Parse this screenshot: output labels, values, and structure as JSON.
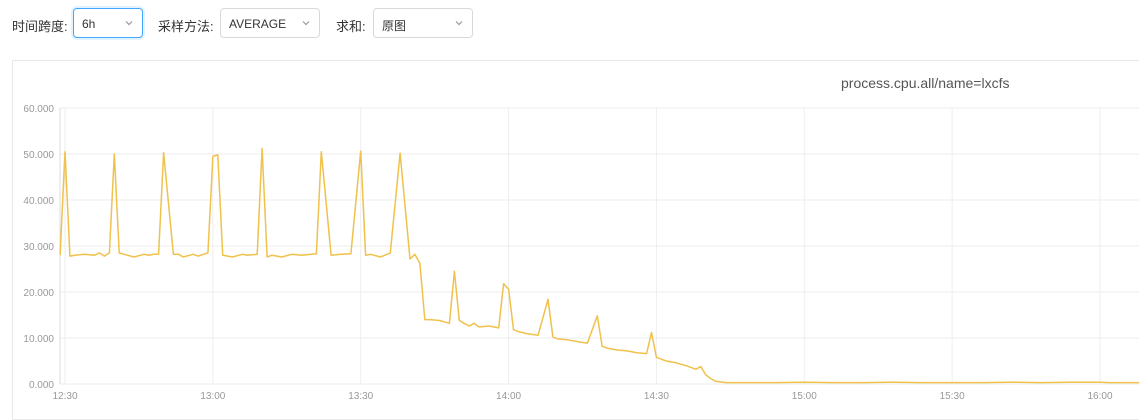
{
  "toolbar": {
    "time_span": {
      "label": "时间跨度:",
      "value": "6h"
    },
    "sampling": {
      "label": "采样方法:",
      "value": "AVERAGE"
    },
    "sum": {
      "label": "求和:",
      "value": "原图"
    }
  },
  "chart_data": {
    "type": "line",
    "title": "process.cpu.all/name=lxcfs",
    "xlabel": "",
    "ylabel": "",
    "ylim": [
      0,
      60
    ],
    "y_ticks": [
      "0.000",
      "10.000",
      "20.000",
      "30.000",
      "40.000",
      "50.000",
      "60.000"
    ],
    "x_ticks": [
      "12:30",
      "13:00",
      "13:30",
      "14:00",
      "14:30",
      "15:00",
      "15:30",
      "16:00"
    ],
    "x_range": [
      "12:29",
      "16:08"
    ],
    "grid": true,
    "line_color": "#f0c14b",
    "series": [
      {
        "x": [
          "12:29",
          "12:30",
          "12:31",
          "12:32",
          "12:34",
          "12:36",
          "12:37",
          "12:38",
          "12:39",
          "12:40",
          "12:41",
          "12:42",
          "12:44",
          "12:46",
          "12:47",
          "12:48",
          "12:49",
          "12:50",
          "12:52",
          "12:53",
          "12:54",
          "12:56",
          "12:57",
          "12:59",
          "13:00",
          "13:01",
          "13:02",
          "13:04",
          "13:06",
          "13:07",
          "13:09",
          "13:10",
          "13:11",
          "13:12",
          "13:14",
          "13:16",
          "13:18",
          "13:20",
          "13:21",
          "13:22",
          "13:24",
          "13:26",
          "13:28",
          "13:30",
          "13:31",
          "13:32",
          "13:34",
          "13:36",
          "13:38",
          "13:40",
          "13:41",
          "13:42",
          "13:43",
          "13:44",
          "13:46",
          "13:48",
          "13:49",
          "13:50",
          "13:51",
          "13:52",
          "13:53",
          "13:54",
          "13:56",
          "13:58",
          "13:59",
          "14:00",
          "14:01",
          "14:02",
          "14:04",
          "14:06",
          "14:08",
          "14:09",
          "14:10",
          "14:12",
          "14:14",
          "14:16",
          "14:18",
          "14:19",
          "14:20",
          "14:22",
          "14:24",
          "14:26",
          "14:28",
          "14:29",
          "14:30",
          "14:31",
          "14:32",
          "14:34",
          "14:36",
          "14:38",
          "14:39",
          "14:40",
          "14:41",
          "14:42",
          "14:44",
          "14:46",
          "14:48",
          "14:50",
          "14:52",
          "14:54",
          "15:00",
          "15:06",
          "15:12",
          "15:18",
          "15:24",
          "15:30",
          "15:36",
          "15:42",
          "15:48",
          "15:54",
          "16:00",
          "16:02",
          "16:08"
        ],
        "values": [
          28,
          50.5,
          27.8,
          28,
          28.2,
          28,
          28.5,
          27.8,
          28.5,
          50,
          28.5,
          28.2,
          27.6,
          28.2,
          28,
          28.2,
          28.2,
          50.3,
          28.2,
          28.2,
          27.6,
          28.2,
          27.8,
          28.5,
          49.5,
          49.8,
          28,
          27.6,
          28.2,
          28,
          28.2,
          51.2,
          27.6,
          28,
          27.6,
          28.2,
          28,
          28.2,
          28.3,
          50.5,
          28,
          28.2,
          28.3,
          50.6,
          28,
          28.2,
          27.6,
          28.5,
          50.2,
          27.2,
          28.2,
          26.2,
          14,
          14,
          13.8,
          13.2,
          24.5,
          13.8,
          13.2,
          12.6,
          13.2,
          12.4,
          12.6,
          12.2,
          21.8,
          20.6,
          11.8,
          11.4,
          10.9,
          10.6,
          18.4,
          10.2,
          9.8,
          9.6,
          9.2,
          8.9,
          14.8,
          8.2,
          7.8,
          7.4,
          7.2,
          6.8,
          6.6,
          11.2,
          5.8,
          5.4,
          5,
          4.6,
          4,
          3.2,
          3.8,
          2.0,
          1.2,
          0.6,
          0.3,
          0.3,
          0.3,
          0.3,
          0.3,
          0.3,
          0.4,
          0.3,
          0.3,
          0.4,
          0.3,
          0.3,
          0.3,
          0.4,
          0.3,
          0.4,
          0.4,
          0.3,
          0.3
        ]
      }
    ]
  }
}
